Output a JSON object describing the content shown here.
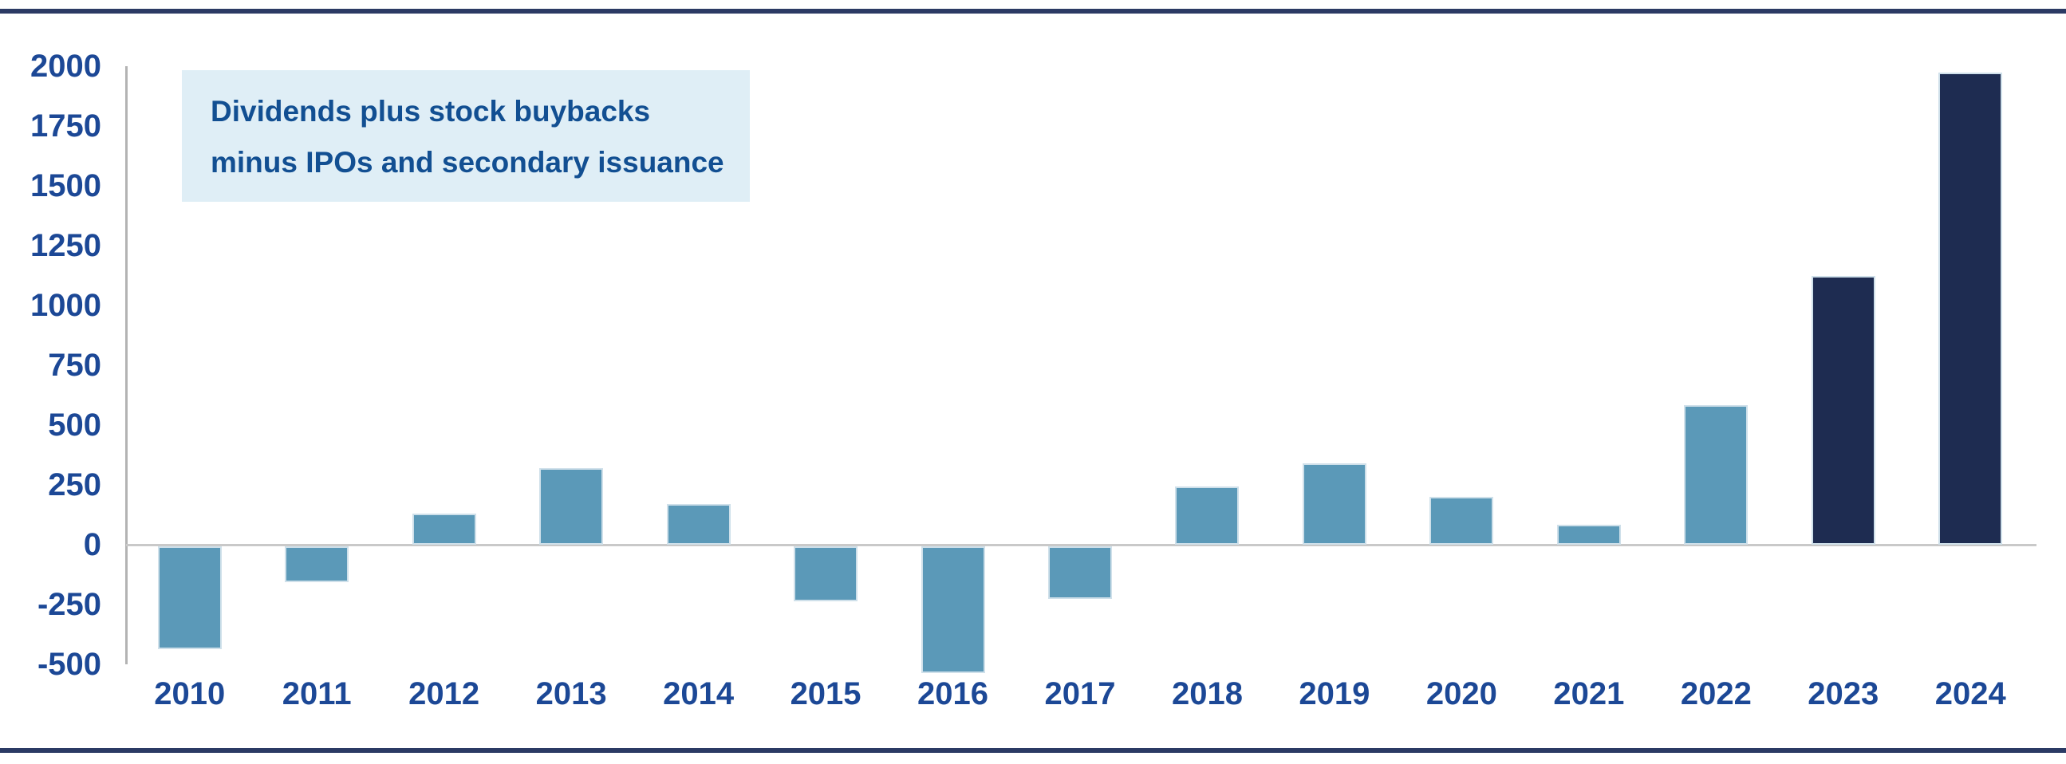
{
  "chart_data": {
    "type": "bar",
    "annotation_lines": [
      "Dividends plus stock buybacks",
      "minus IPOs and secondary issuance"
    ],
    "categories": [
      "2010",
      "2011",
      "2012",
      "2013",
      "2014",
      "2015",
      "2016",
      "2017",
      "2018",
      "2019",
      "2020",
      "2021",
      "2022",
      "2023",
      "2024"
    ],
    "values": [
      -430,
      -150,
      130,
      320,
      170,
      -230,
      -530,
      -220,
      245,
      340,
      200,
      85,
      585,
      1125,
      1975
    ],
    "bar_colors": [
      "#5b99b8",
      "#5b99b8",
      "#5b99b8",
      "#5b99b8",
      "#5b99b8",
      "#5b99b8",
      "#5b99b8",
      "#5b99b8",
      "#5b99b8",
      "#5b99b8",
      "#5b99b8",
      "#5b99b8",
      "#5b99b8",
      "#1e2c51",
      "#1e2c51"
    ],
    "yticks": [
      2000,
      1750,
      1500,
      1250,
      1000,
      750,
      500,
      250,
      0,
      -250,
      -500
    ],
    "ylim": [
      -550,
      2000
    ],
    "xlabel": "",
    "ylabel": "",
    "title": "",
    "legend": "none",
    "grid": "zero-baseline-only"
  },
  "colors": {
    "bar_default": "#5b99b8",
    "bar_highlight": "#1e2c51",
    "tick_label": "#1c4896",
    "annotation_text": "#124f92",
    "annotation_bg": "#dfeef6",
    "zero_line": "#c9c9c9",
    "axis_line": "#b3b3b3",
    "page_rule": "#2b3a64"
  }
}
